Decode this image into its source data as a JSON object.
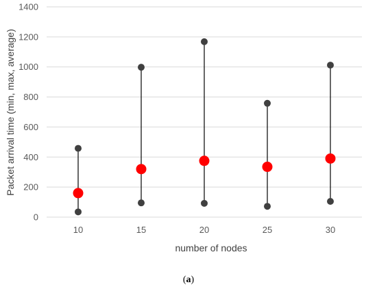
{
  "chart_data": {
    "type": "scatter",
    "xlabel": "number of nodes",
    "ylabel": "Packet arrival time (min, max, average)",
    "categories": [
      "10",
      "15",
      "20",
      "25",
      "30"
    ],
    "ylim": [
      0,
      1400
    ],
    "yticks": [
      "0",
      "200",
      "400",
      "600",
      "800",
      "1000",
      "1200",
      "1400"
    ],
    "grid": true,
    "series": [
      {
        "values": [
          35,
          95,
          92,
          72,
          105
        ],
        "color": "#404040"
      },
      {
        "values": [
          458,
          998,
          1168,
          758,
          1012
        ],
        "color": "#404040"
      },
      {
        "values": [
          160,
          320,
          375,
          335,
          390
        ],
        "color": "#ff0000"
      }
    ],
    "whisker_color": "#000000",
    "gridline_color": "#d9d9d9"
  },
  "caption": {
    "open": "(",
    "label": "a",
    "close": ")"
  }
}
